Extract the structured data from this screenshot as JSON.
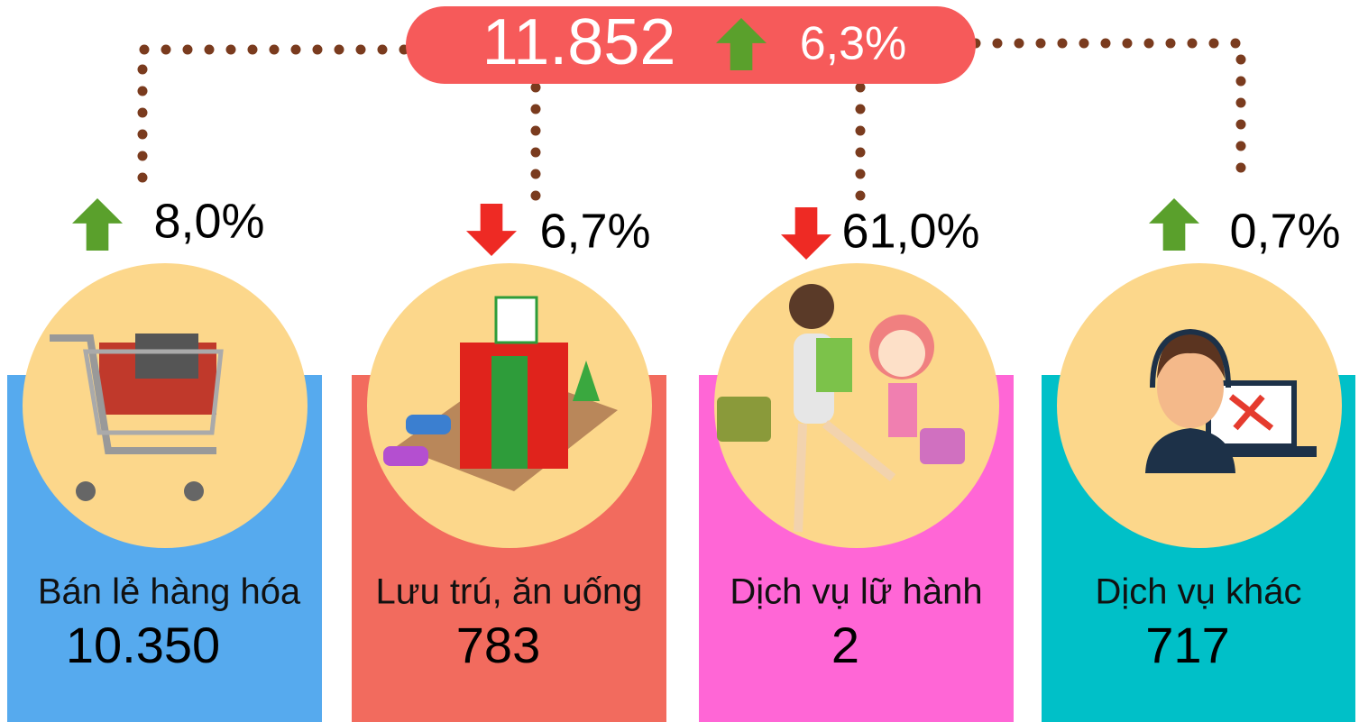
{
  "total": {
    "value": "11.852",
    "change": "6,3%",
    "trend": "up"
  },
  "categories": [
    {
      "label": "Bán lẻ hàng hóa",
      "value": "10.350",
      "change": "8,0%",
      "trend": "up",
      "color": "#56aaee"
    },
    {
      "label": "Lưu trú, ăn uống",
      "value": "783",
      "change": "6,7%",
      "trend": "down",
      "color": "#f26b5e"
    },
    {
      "label": "Dịch vụ lữ hành",
      "value": "2",
      "change": "61,0%",
      "trend": "down",
      "color": "#ff66d6"
    },
    {
      "label": "Dịch vụ khác",
      "value": "717",
      "change": "0,7%",
      "trend": "up",
      "color": "#00c0c8"
    }
  ]
}
